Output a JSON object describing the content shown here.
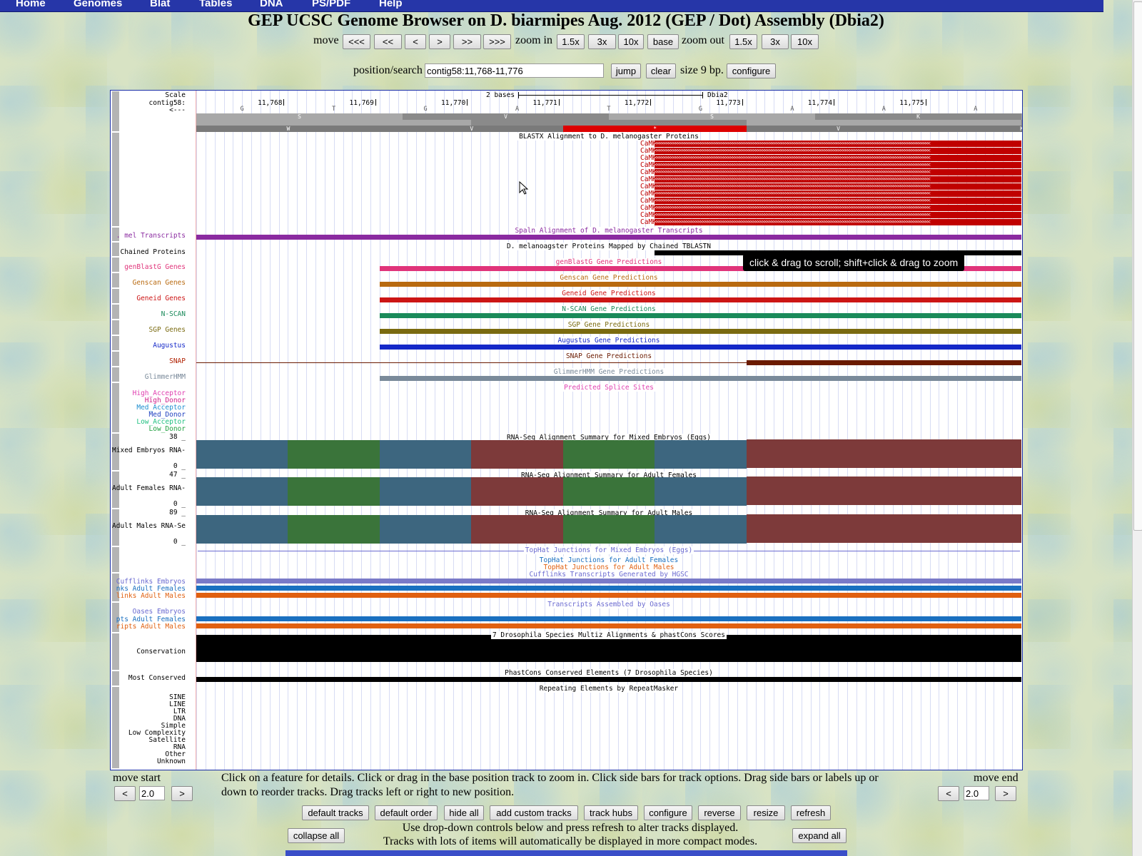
{
  "nav": [
    "Home",
    "Genomes",
    "Blat",
    "Tables",
    "DNA",
    "PS/PDF",
    "Help"
  ],
  "title": "GEP UCSC Genome Browser on D. biarmipes Aug. 2012 (GEP / Dot) Assembly (Dbia2)",
  "move": {
    "label": "move",
    "buttons": [
      "<<<",
      "<<",
      "<",
      ">",
      ">>",
      ">>>"
    ]
  },
  "zoom_in": {
    "label": "zoom in",
    "buttons": [
      "1.5x",
      "3x",
      "10x",
      "base"
    ]
  },
  "zoom_out": {
    "label": "zoom out",
    "buttons": [
      "1.5x",
      "3x",
      "10x"
    ]
  },
  "search": {
    "label": "position/search",
    "value": "contig58:11,768-11,776",
    "jump": "jump",
    "clear": "clear",
    "size": "size 9 bp.",
    "configure": "configure"
  },
  "ruler": {
    "scale": "Scale",
    "chrom": "contig58:",
    "strand": "<---",
    "bases_label": "2 bases",
    "assembly": "Dbia2",
    "ticks": [
      "11,768",
      "11,769",
      "11,770",
      "11,771",
      "11,772",
      "11,773",
      "11,774",
      "11,775"
    ],
    "dna": [
      "G",
      "T",
      "G",
      "A",
      "T",
      "G",
      "A",
      "A",
      "A"
    ],
    "frame1": [
      "S",
      "V",
      "S",
      "K",
      "K"
    ],
    "frame3": [
      "W",
      "V",
      "*",
      "V",
      "K"
    ]
  },
  "tracks": {
    "blastx": {
      "title": "BLASTX Alignment to D. melanogaster Proteins",
      "items": [
        "CaMKII-PA",
        "CaMKII-PM",
        "CaMKII-PE",
        "CaMKII-PG",
        "CaMKII-PL",
        "CaMKII-PI",
        "CaMKII-PD",
        "CaMKII-PJ",
        "CaMKII-PB",
        "CaMKII-PK",
        "CaMKII-PH",
        "CaMKII-PC"
      ]
    },
    "mel_transcripts": {
      "label": ". mel Transcripts",
      "title": "Spaln Alignment of D. melanogaster Transcripts"
    },
    "chained": {
      "label": "Chained Proteins",
      "title": "D. melanoagster Proteins Mapped by Chained TBLASTN"
    },
    "genblast": {
      "label": "genBlastG Genes",
      "title": "genBlastG Gene Predictions"
    },
    "genscan": {
      "label": "Genscan Genes",
      "title": "Genscan Gene Predictions"
    },
    "geneid": {
      "label": "Geneid Genes",
      "title": "Geneid Gene Predictions"
    },
    "nscan": {
      "label": "N-SCAN",
      "title": "N-SCAN Gene Predictions"
    },
    "sgp": {
      "label": "SGP Genes",
      "title": "SGP Gene Predictions"
    },
    "augustus": {
      "label": "Augustus",
      "title": "Augustus Gene Predictions"
    },
    "snap": {
      "label": "SNAP",
      "title": "SNAP Gene Predictions"
    },
    "glimmer": {
      "label": "GlimmerHMM",
      "title": "GlimmerHMM Gene Predictions"
    },
    "splice": {
      "title": "Predicted Splice Sites",
      "items": [
        "High_Acceptor",
        "High_Donor",
        "Med_Acceptor",
        "Med_Donor",
        "Low_Acceptor",
        "Low_Donor"
      ]
    },
    "rna_embryos": {
      "label": "Mixed Embryos RNA-",
      "title": "RNA-Seq Alignment Summary for Mixed Embryos (Eggs)",
      "max": "38 _",
      "min": "0 _"
    },
    "rna_females": {
      "label": "Adult Females RNA-",
      "title": "RNA-Seq Alignment Summary for Adult Females",
      "max": "47 _",
      "min": "0 _"
    },
    "rna_males": {
      "label": "Adult Males RNA-Se",
      "title": "RNA-Seq Alignment Summary for Adult Males",
      "max": "89 _",
      "min": "0 _"
    },
    "tophat": {
      "titles": [
        "TopHat Junctions for Mixed Embryos (Eggs)",
        "TopHat Junctions for Adult Females",
        "TopHat Junctions for Adult Males"
      ]
    },
    "cufflinks": {
      "title": "Cufflinks Transcripts Generated by HGSC",
      "items": [
        "Cufflinks Embryos",
        "nks Adult Females",
        "links Adult Males"
      ]
    },
    "oases": {
      "title": "Transcripts Assembled by Oases",
      "items": [
        "Oases Embryos",
        "pts Adult Females",
        "ripts Adult Males"
      ]
    },
    "conservation": {
      "label": "Conservation",
      "title": "7 Drosophila Species Multiz Alignments & phastCons Scores"
    },
    "most_conserved": {
      "label": "Most Conserved",
      "title": "PhastCons Conserved Elements (7 Drosophila Species)"
    },
    "repeatmasker": {
      "title": "Repeating Elements by RepeatMasker",
      "items": [
        "SINE",
        "LINE",
        "LTR",
        "DNA",
        "Simple",
        "Low Complexity",
        "Satellite",
        "RNA",
        "Other",
        "Unknown"
      ]
    }
  },
  "tooltip": "click & drag to scroll; shift+click & drag to zoom",
  "bottom": {
    "move_start": "move start",
    "move_end": "move end",
    "step_start": "2.0",
    "step_end": "2.0",
    "help": "Click on a feature for details. Click or drag in the base position track to zoom in. Click side bars for track options. Drag side bars or labels up or down to reorder tracks. Drag tracks left or right to new position.",
    "buttons": [
      "default tracks",
      "default order",
      "hide all",
      "add custom tracks",
      "track hubs",
      "configure",
      "reverse",
      "resize",
      "refresh"
    ],
    "collapse": "collapse all",
    "expand": "expand all",
    "note1": "Use drop-down controls below and press refresh to alter tracks displayed.",
    "note2": "Tracks with lots of items will automatically be displayed in more compact modes."
  },
  "colors": {
    "nav": "#2636a8",
    "camkii": "#c00000",
    "genblast": "#e0347a",
    "genscan": "#b86a10",
    "geneid": "#cc1515",
    "nscan": "#1a8a5a",
    "sgp": "#7a6a10",
    "augustus": "#1428c8",
    "snap": "#6a1a00",
    "glimmer": "#7a8a9a",
    "rna_blue": "#3d667f",
    "rna_green": "#3a743a",
    "rna_red": "#7d3a3a"
  }
}
